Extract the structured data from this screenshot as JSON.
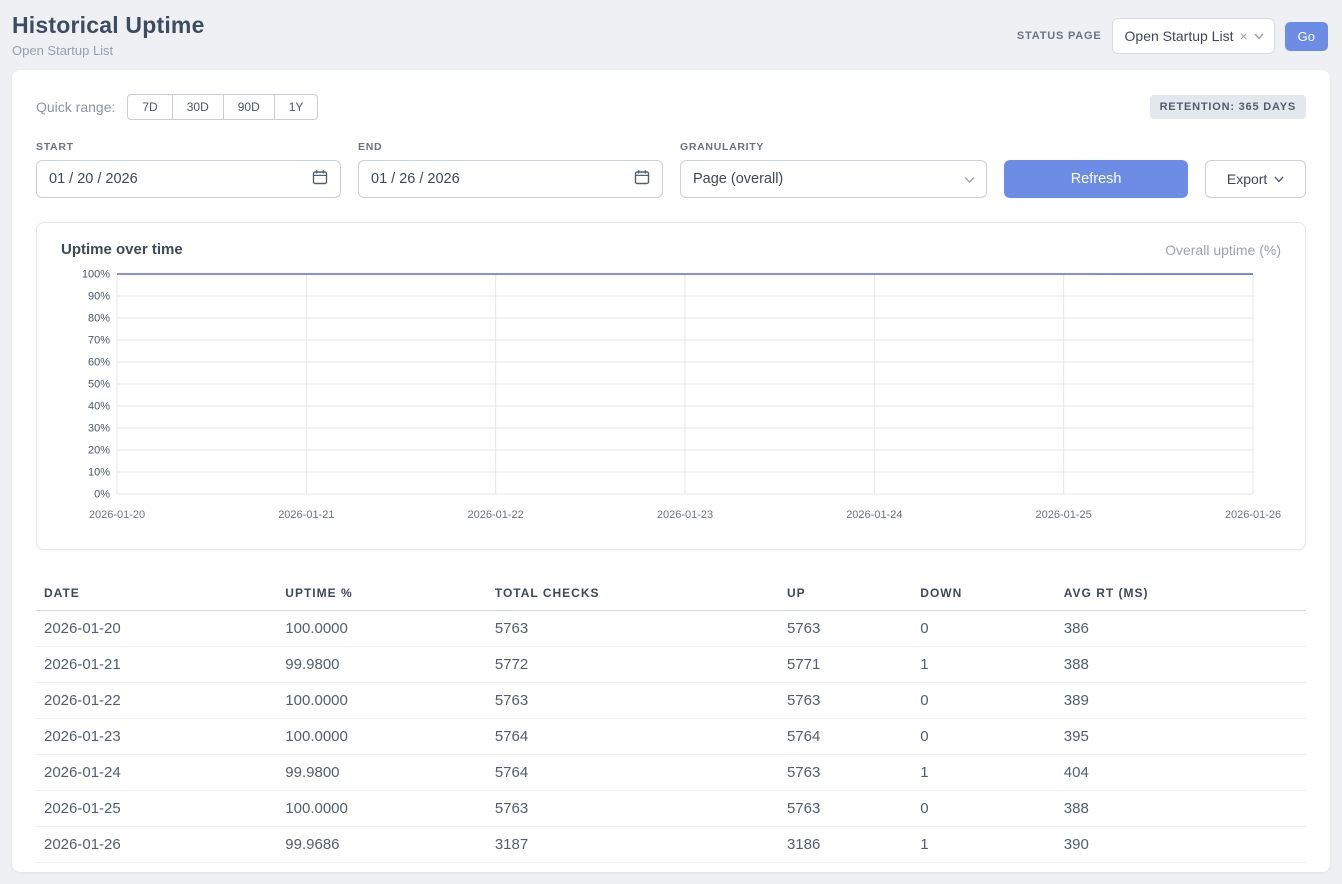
{
  "header": {
    "title": "Historical Uptime",
    "subtitle": "Open Startup List",
    "status_page_label": "STATUS PAGE",
    "status_page_select": {
      "value": "Open Startup List"
    },
    "go_button": "Go"
  },
  "icons": {
    "clear": "×"
  },
  "filters": {
    "quick_range_label": "Quick range:",
    "quick_ranges": [
      "7D",
      "30D",
      "90D",
      "1Y"
    ],
    "retention_badge": "RETENTION: 365 DAYS",
    "start": {
      "label": "START",
      "value": "01 / 20 / 2026"
    },
    "end": {
      "label": "END",
      "value": "01 / 26 / 2026"
    },
    "granularity": {
      "label": "GRANULARITY",
      "value": "Page (overall)"
    },
    "refresh_button": "Refresh",
    "export_button": "Export"
  },
  "chart": {
    "title": "Uptime over time",
    "legend": "Overall uptime (%)"
  },
  "chart_data": {
    "type": "line",
    "x": [
      "2026-01-20",
      "2026-01-21",
      "2026-01-22",
      "2026-01-23",
      "2026-01-24",
      "2026-01-25",
      "2026-01-26"
    ],
    "series": [
      {
        "name": "Overall uptime (%)",
        "values": [
          100.0,
          99.98,
          100.0,
          100.0,
          99.98,
          100.0,
          99.9686
        ]
      }
    ],
    "ylim": [
      0,
      100
    ],
    "ytick_step": 10,
    "ytick_suffix": "%",
    "grid": true,
    "legend_position": "top-right",
    "line_color": "#6366f1"
  },
  "table": {
    "columns": [
      "DATE",
      "UPTIME %",
      "TOTAL CHECKS",
      "UP",
      "DOWN",
      "AVG RT (MS)"
    ],
    "rows": [
      [
        "2026-01-20",
        "100.0000",
        "5763",
        "5763",
        "0",
        "386"
      ],
      [
        "2026-01-21",
        "99.9800",
        "5772",
        "5771",
        "1",
        "388"
      ],
      [
        "2026-01-22",
        "100.0000",
        "5763",
        "5763",
        "0",
        "389"
      ],
      [
        "2026-01-23",
        "100.0000",
        "5764",
        "5764",
        "0",
        "395"
      ],
      [
        "2026-01-24",
        "99.9800",
        "5764",
        "5763",
        "1",
        "404"
      ],
      [
        "2026-01-25",
        "100.0000",
        "5763",
        "5763",
        "0",
        "388"
      ],
      [
        "2026-01-26",
        "99.9686",
        "3187",
        "3186",
        "1",
        "390"
      ]
    ]
  }
}
